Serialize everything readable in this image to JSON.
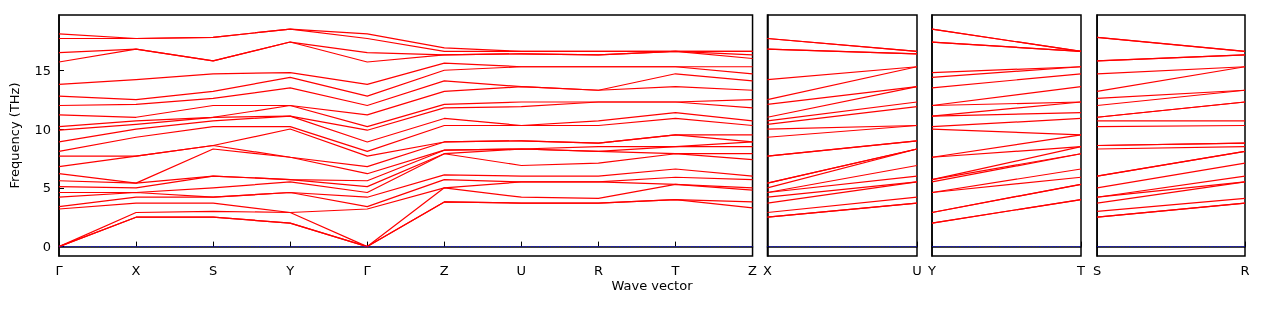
{
  "chart_data": [
    {
      "type": "line",
      "ylabel": "Frequency (THz)",
      "xlabel": "Wave vector",
      "categories": [
        "Γ",
        "X",
        "S",
        "Y",
        "Γ",
        "Z",
        "U",
        "R",
        "T",
        "Z"
      ],
      "ylim": [
        -0.8,
        19.7
      ],
      "yticks": [
        0,
        5,
        10,
        15
      ],
      "marker": "none",
      "line_style": "solid",
      "ref_lines": [
        {
          "axis": "y",
          "value": 0,
          "color": "#0000ff",
          "line_style": "dotted"
        }
      ],
      "series": [
        {
          "color": "#ff0000",
          "values": [
            0,
            2.5,
            2.5,
            2.0,
            0,
            3.8,
            3.7,
            3.7,
            4.0,
            3.3
          ]
        },
        {
          "color": "#ff0000",
          "values": [
            0,
            2.5,
            2.5,
            2.0,
            0,
            3.8,
            3.7,
            3.7,
            4.0,
            3.8
          ]
        },
        {
          "color": "#ff0000",
          "values": [
            0,
            2.9,
            3.0,
            2.9,
            0,
            5.0,
            4.2,
            4.1,
            5.3,
            4.8
          ]
        },
        {
          "color": "#ff0000",
          "values": [
            3.2,
            3.7,
            3.7,
            2.9,
            3.2,
            5.0,
            5.5,
            5.5,
            5.3,
            5.0
          ]
        },
        {
          "color": "#ff0000",
          "values": [
            3.4,
            4.2,
            4.2,
            4.6,
            3.4,
            5.7,
            5.5,
            5.5,
            5.9,
            5.7
          ]
        },
        {
          "color": "#ff0000",
          "values": [
            4.2,
            4.6,
            4.2,
            4.6,
            4.2,
            6.1,
            6.0,
            6.0,
            6.6,
            6.0
          ]
        },
        {
          "color": "#ff0000",
          "values": [
            4.6,
            4.6,
            5.0,
            5.5,
            4.6,
            7.9,
            6.9,
            7.1,
            7.9,
            7.4
          ]
        },
        {
          "color": "#ff0000",
          "values": [
            5.1,
            5.0,
            6.0,
            5.7,
            5.1,
            7.9,
            8.3,
            8.1,
            7.9,
            7.9
          ]
        },
        {
          "color": "#ff0000",
          "values": [
            5.6,
            5.4,
            6.0,
            5.7,
            5.6,
            8.2,
            8.3,
            8.1,
            8.5,
            8.5
          ]
        },
        {
          "color": "#ff0000",
          "values": [
            6.2,
            5.4,
            8.3,
            7.6,
            6.2,
            8.2,
            8.3,
            8.5,
            8.5,
            8.9
          ]
        },
        {
          "color": "#ff0000",
          "values": [
            6.8,
            7.7,
            8.6,
            7.6,
            6.8,
            8.9,
            9.0,
            8.8,
            9.5,
            8.9
          ]
        },
        {
          "color": "#ff0000",
          "values": [
            7.7,
            7.7,
            8.6,
            10.0,
            7.7,
            8.9,
            9.0,
            8.8,
            9.5,
            9.5
          ]
        },
        {
          "color": "#ff0000",
          "values": [
            8.1,
            9.3,
            10.2,
            10.2,
            8.1,
            10.3,
            10.3,
            10.3,
            10.9,
            10.3
          ]
        },
        {
          "color": "#ff0000",
          "values": [
            8.9,
            10.0,
            10.7,
            11.1,
            8.9,
            10.9,
            10.3,
            10.7,
            11.4,
            10.7
          ]
        },
        {
          "color": "#ff0000",
          "values": [
            9.9,
            10.4,
            11.0,
            11.1,
            9.9,
            11.8,
            11.9,
            12.3,
            12.3,
            11.8
          ]
        },
        {
          "color": "#ff0000",
          "values": [
            10.2,
            10.7,
            11.0,
            12.0,
            10.2,
            12.1,
            12.3,
            12.3,
            12.3,
            12.5
          ]
        },
        {
          "color": "#ff0000",
          "values": [
            11.2,
            11.0,
            12.0,
            12.0,
            11.2,
            13.2,
            13.6,
            13.3,
            13.6,
            13.3
          ]
        },
        {
          "color": "#ff0000",
          "values": [
            12.0,
            12.1,
            12.6,
            13.5,
            12.0,
            14.1,
            13.6,
            13.3,
            14.7,
            14.1
          ]
        },
        {
          "color": "#ff0000",
          "values": [
            12.8,
            12.5,
            13.2,
            14.4,
            12.8,
            15.0,
            15.3,
            15.3,
            15.3,
            14.7
          ]
        },
        {
          "color": "#ff0000",
          "values": [
            13.8,
            14.2,
            14.7,
            14.8,
            13.8,
            15.6,
            15.3,
            15.3,
            15.3,
            15.3
          ]
        },
        {
          "color": "#ff0000",
          "values": [
            15.7,
            16.8,
            15.8,
            17.4,
            15.7,
            16.3,
            16.4,
            16.3,
            16.6,
            16.0
          ]
        },
        {
          "color": "#ff0000",
          "values": [
            16.5,
            16.8,
            15.8,
            17.4,
            16.5,
            16.3,
            16.4,
            16.3,
            16.6,
            16.3
          ]
        },
        {
          "color": "#ff0000",
          "values": [
            17.7,
            17.7,
            17.8,
            18.5,
            17.7,
            16.6,
            16.6,
            16.6,
            16.6,
            16.6
          ]
        },
        {
          "color": "#ff0000",
          "values": [
            18.1,
            17.7,
            17.8,
            18.5,
            18.1,
            16.9,
            16.6,
            16.6,
            16.6,
            16.6
          ]
        }
      ]
    },
    {
      "type": "line",
      "categories": [
        "X",
        "U"
      ],
      "ylim": [
        -0.8,
        19.7
      ],
      "yticks": [
        0,
        5,
        10,
        15
      ],
      "tick_labels": "x",
      "marker": "none",
      "line_style": "solid",
      "ref_lines": [
        {
          "axis": "y",
          "value": 0,
          "color": "#0000ff",
          "line_style": "dotted"
        }
      ],
      "series": [
        {
          "color": "#ff0000",
          "values": [
            2.5,
            3.7
          ]
        },
        {
          "color": "#ff0000",
          "values": [
            2.5,
            3.7
          ]
        },
        {
          "color": "#ff0000",
          "values": [
            2.9,
            4.2
          ]
        },
        {
          "color": "#ff0000",
          "values": [
            3.7,
            5.5
          ]
        },
        {
          "color": "#ff0000",
          "values": [
            4.2,
            5.5
          ]
        },
        {
          "color": "#ff0000",
          "values": [
            4.6,
            6.0
          ]
        },
        {
          "color": "#ff0000",
          "values": [
            4.6,
            6.9
          ]
        },
        {
          "color": "#ff0000",
          "values": [
            5.0,
            8.3
          ]
        },
        {
          "color": "#ff0000",
          "values": [
            5.4,
            8.3
          ]
        },
        {
          "color": "#ff0000",
          "values": [
            5.4,
            8.3
          ]
        },
        {
          "color": "#ff0000",
          "values": [
            7.7,
            9.0
          ]
        },
        {
          "color": "#ff0000",
          "values": [
            7.7,
            9.0
          ]
        },
        {
          "color": "#ff0000",
          "values": [
            9.3,
            10.3
          ]
        },
        {
          "color": "#ff0000",
          "values": [
            10.0,
            10.3
          ]
        },
        {
          "color": "#ff0000",
          "values": [
            10.4,
            11.9
          ]
        },
        {
          "color": "#ff0000",
          "values": [
            10.7,
            12.3
          ]
        },
        {
          "color": "#ff0000",
          "values": [
            11.0,
            13.6
          ]
        },
        {
          "color": "#ff0000",
          "values": [
            12.1,
            13.6
          ]
        },
        {
          "color": "#ff0000",
          "values": [
            12.5,
            15.3
          ]
        },
        {
          "color": "#ff0000",
          "values": [
            14.2,
            15.3
          ]
        },
        {
          "color": "#ff0000",
          "values": [
            16.8,
            16.4
          ]
        },
        {
          "color": "#ff0000",
          "values": [
            16.8,
            16.4
          ]
        },
        {
          "color": "#ff0000",
          "values": [
            17.7,
            16.6
          ]
        },
        {
          "color": "#ff0000",
          "values": [
            17.7,
            16.6
          ]
        }
      ]
    },
    {
      "type": "line",
      "categories": [
        "Y",
        "T"
      ],
      "ylim": [
        -0.8,
        19.7
      ],
      "yticks": [
        0,
        5,
        10,
        15
      ],
      "tick_labels": "x",
      "marker": "none",
      "line_style": "solid",
      "ref_lines": [
        {
          "axis": "y",
          "value": 0,
          "color": "#0000ff",
          "line_style": "dotted"
        }
      ],
      "series": [
        {
          "color": "#ff0000",
          "values": [
            2.0,
            4.0
          ]
        },
        {
          "color": "#ff0000",
          "values": [
            2.0,
            4.0
          ]
        },
        {
          "color": "#ff0000",
          "values": [
            2.9,
            5.3
          ]
        },
        {
          "color": "#ff0000",
          "values": [
            2.9,
            5.3
          ]
        },
        {
          "color": "#ff0000",
          "values": [
            4.6,
            5.9
          ]
        },
        {
          "color": "#ff0000",
          "values": [
            4.6,
            6.6
          ]
        },
        {
          "color": "#ff0000",
          "values": [
            5.5,
            7.9
          ]
        },
        {
          "color": "#ff0000",
          "values": [
            5.7,
            7.9
          ]
        },
        {
          "color": "#ff0000",
          "values": [
            5.7,
            8.5
          ]
        },
        {
          "color": "#ff0000",
          "values": [
            7.6,
            8.5
          ]
        },
        {
          "color": "#ff0000",
          "values": [
            7.6,
            9.5
          ]
        },
        {
          "color": "#ff0000",
          "values": [
            10.0,
            9.5
          ]
        },
        {
          "color": "#ff0000",
          "values": [
            10.2,
            10.9
          ]
        },
        {
          "color": "#ff0000",
          "values": [
            11.1,
            11.4
          ]
        },
        {
          "color": "#ff0000",
          "values": [
            11.1,
            12.3
          ]
        },
        {
          "color": "#ff0000",
          "values": [
            12.0,
            12.3
          ]
        },
        {
          "color": "#ff0000",
          "values": [
            12.0,
            13.6
          ]
        },
        {
          "color": "#ff0000",
          "values": [
            13.5,
            14.7
          ]
        },
        {
          "color": "#ff0000",
          "values": [
            14.4,
            15.3
          ]
        },
        {
          "color": "#ff0000",
          "values": [
            14.8,
            15.3
          ]
        },
        {
          "color": "#ff0000",
          "values": [
            17.4,
            16.6
          ]
        },
        {
          "color": "#ff0000",
          "values": [
            17.4,
            16.6
          ]
        },
        {
          "color": "#ff0000",
          "values": [
            18.5,
            16.6
          ]
        },
        {
          "color": "#ff0000",
          "values": [
            18.5,
            16.6
          ]
        }
      ]
    },
    {
      "type": "line",
      "categories": [
        "S",
        "R"
      ],
      "ylim": [
        -0.8,
        19.7
      ],
      "yticks": [
        0,
        5,
        10,
        15
      ],
      "tick_labels": "x",
      "marker": "none",
      "line_style": "solid",
      "ref_lines": [
        {
          "axis": "y",
          "value": 0,
          "color": "#0000ff",
          "line_style": "dotted"
        }
      ],
      "series": [
        {
          "color": "#ff0000",
          "values": [
            2.5,
            3.7
          ]
        },
        {
          "color": "#ff0000",
          "values": [
            2.5,
            3.7
          ]
        },
        {
          "color": "#ff0000",
          "values": [
            3.0,
            4.1
          ]
        },
        {
          "color": "#ff0000",
          "values": [
            3.7,
            5.5
          ]
        },
        {
          "color": "#ff0000",
          "values": [
            4.2,
            5.5
          ]
        },
        {
          "color": "#ff0000",
          "values": [
            4.2,
            6.0
          ]
        },
        {
          "color": "#ff0000",
          "values": [
            5.0,
            7.1
          ]
        },
        {
          "color": "#ff0000",
          "values": [
            6.0,
            8.1
          ]
        },
        {
          "color": "#ff0000",
          "values": [
            6.0,
            8.1
          ]
        },
        {
          "color": "#ff0000",
          "values": [
            8.3,
            8.5
          ]
        },
        {
          "color": "#ff0000",
          "values": [
            8.6,
            8.8
          ]
        },
        {
          "color": "#ff0000",
          "values": [
            8.6,
            8.8
          ]
        },
        {
          "color": "#ff0000",
          "values": [
            10.2,
            10.3
          ]
        },
        {
          "color": "#ff0000",
          "values": [
            10.7,
            10.7
          ]
        },
        {
          "color": "#ff0000",
          "values": [
            11.0,
            12.3
          ]
        },
        {
          "color": "#ff0000",
          "values": [
            11.0,
            12.3
          ]
        },
        {
          "color": "#ff0000",
          "values": [
            12.0,
            13.3
          ]
        },
        {
          "color": "#ff0000",
          "values": [
            12.6,
            13.3
          ]
        },
        {
          "color": "#ff0000",
          "values": [
            13.2,
            15.3
          ]
        },
        {
          "color": "#ff0000",
          "values": [
            14.7,
            15.3
          ]
        },
        {
          "color": "#ff0000",
          "values": [
            15.8,
            16.3
          ]
        },
        {
          "color": "#ff0000",
          "values": [
            15.8,
            16.3
          ]
        },
        {
          "color": "#ff0000",
          "values": [
            17.8,
            16.6
          ]
        },
        {
          "color": "#ff0000",
          "values": [
            17.8,
            16.6
          ]
        }
      ]
    }
  ]
}
